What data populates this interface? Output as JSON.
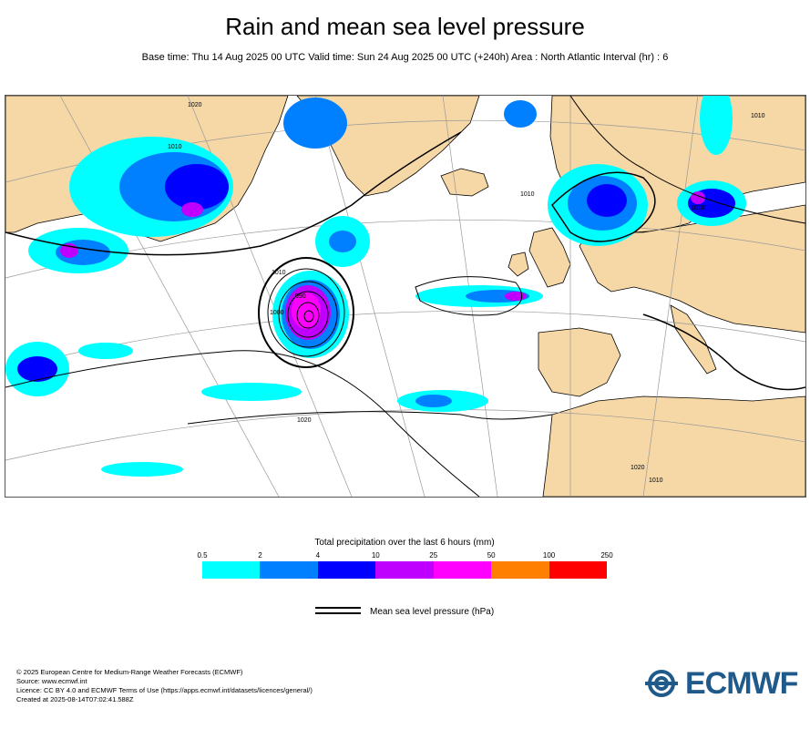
{
  "header": {
    "title": "Rain and mean sea level pressure",
    "subtitle": "Base time: Thu 14 Aug 2025 00 UTC Valid time: Sun 24 Aug 2025 00 UTC (+240h) Area : North Atlantic Interval (hr) : 6"
  },
  "map": {
    "region": "North Atlantic",
    "colors": {
      "land": "#f6d7a6",
      "sea": "#ffffff",
      "borders": "#777777",
      "coast": "#000000",
      "isobar": "#000000",
      "graticule": "#999999"
    },
    "isobar_labels": [
      "1020",
      "1010",
      "1020",
      "1010",
      "1000",
      "990",
      "1010",
      "1010",
      "1010",
      "1020",
      "1010"
    ]
  },
  "legend": {
    "title": "Total precipitation over the last 6 hours (mm)",
    "ticks": [
      "0.5",
      "2",
      "4",
      "10",
      "25",
      "50",
      "100",
      "250"
    ],
    "colors": [
      "#00ffff",
      "#0080ff",
      "#0000ff",
      "#c000ff",
      "#ff00ff",
      "#ff8000",
      "#ff0000"
    ],
    "mslp_label": "Mean sea level pressure (hPa)"
  },
  "footer": {
    "lines": [
      "© 2025 European Centre for Medium-Range Weather Forecasts (ECMWF)",
      "Source: www.ecmwf.int",
      "Licence: CC BY 4.0 and ECMWF Terms of Use (https://apps.ecmwf.int/datasets/licences/general/)",
      "Created at 2025-08-14T07:02:41.588Z"
    ],
    "logo_text": "ECMWF",
    "logo_color": "#1f5a8a"
  }
}
